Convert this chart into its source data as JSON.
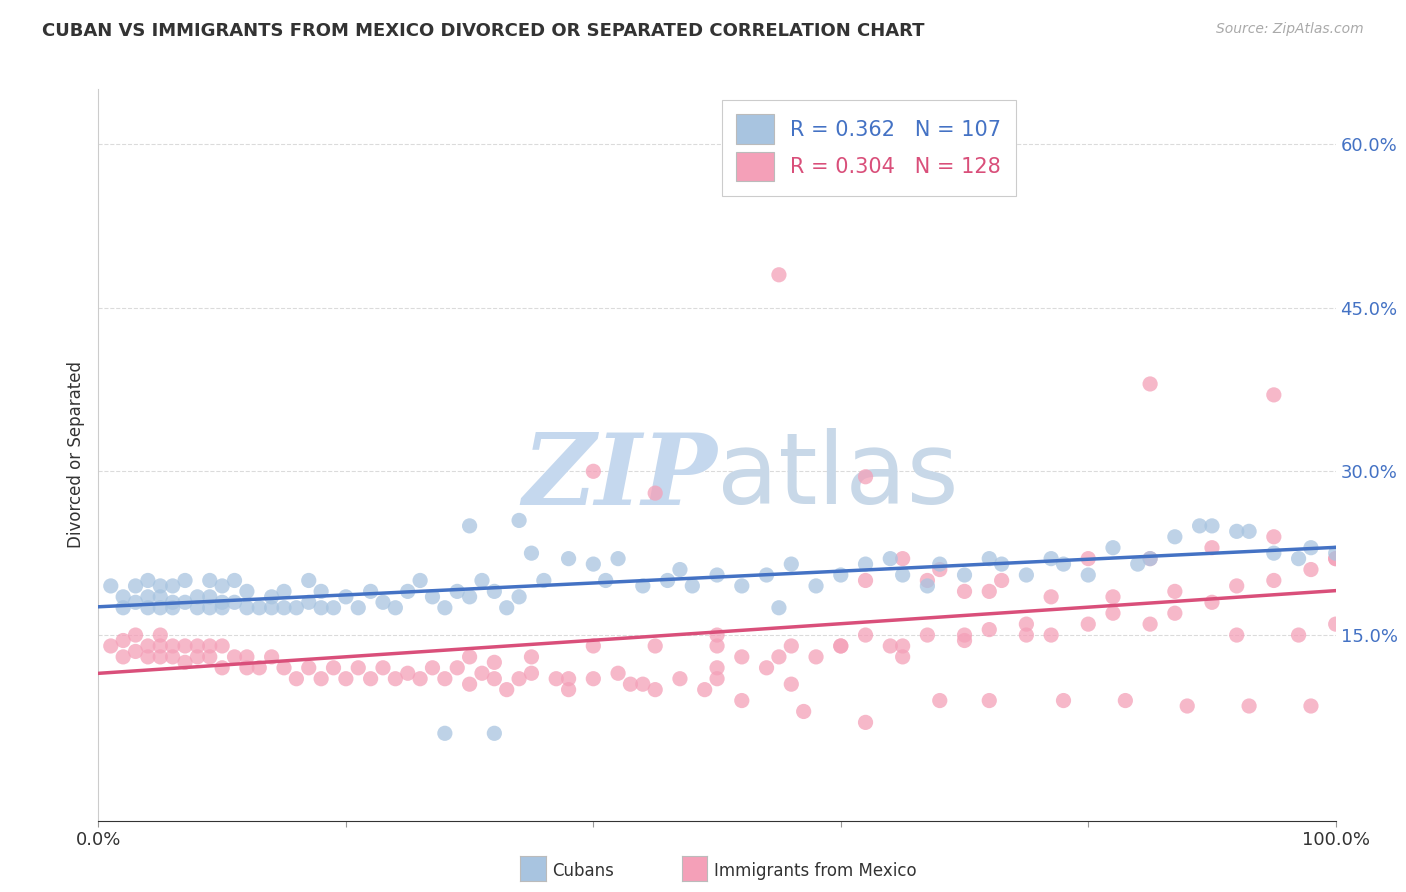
{
  "title": "CUBAN VS IMMIGRANTS FROM MEXICO DIVORCED OR SEPARATED CORRELATION CHART",
  "source": "Source: ZipAtlas.com",
  "ylabel": "Divorced or Separated",
  "xlim": [
    0.0,
    1.0
  ],
  "ylim": [
    -0.02,
    0.65
  ],
  "ytick_vals": [
    0.15,
    0.3,
    0.45,
    0.6
  ],
  "ytick_labels": [
    "15.0%",
    "30.0%",
    "45.0%",
    "60.0%"
  ],
  "legend_labels": [
    "Cubans",
    "Immigrants from Mexico"
  ],
  "cubans_R": "0.362",
  "cubans_N": "107",
  "mexico_R": "0.304",
  "mexico_N": "128",
  "cubans_color": "#a8c4e0",
  "mexico_color": "#f4a0b8",
  "cubans_line_color": "#4472c4",
  "mexico_line_color": "#d94f7a",
  "watermark_zip": "ZIP",
  "watermark_atlas": "atlas",
  "watermark_color": "#dde8f5",
  "background_color": "#ffffff",
  "grid_color": "#cccccc",
  "cubans_x": [
    0.01,
    0.02,
    0.02,
    0.03,
    0.03,
    0.04,
    0.04,
    0.04,
    0.05,
    0.05,
    0.05,
    0.06,
    0.06,
    0.06,
    0.07,
    0.07,
    0.08,
    0.08,
    0.09,
    0.09,
    0.09,
    0.1,
    0.1,
    0.1,
    0.11,
    0.11,
    0.12,
    0.12,
    0.13,
    0.14,
    0.14,
    0.15,
    0.15,
    0.16,
    0.17,
    0.17,
    0.18,
    0.18,
    0.19,
    0.2,
    0.21,
    0.22,
    0.23,
    0.24,
    0.25,
    0.26,
    0.27,
    0.28,
    0.29,
    0.3,
    0.31,
    0.32,
    0.33,
    0.34,
    0.35,
    0.36,
    0.38,
    0.4,
    0.41,
    0.42,
    0.44,
    0.46,
    0.47,
    0.48,
    0.5,
    0.52,
    0.54,
    0.55,
    0.56,
    0.58,
    0.6,
    0.62,
    0.64,
    0.65,
    0.67,
    0.68,
    0.7,
    0.72,
    0.73,
    0.75,
    0.77,
    0.78,
    0.8,
    0.82,
    0.84,
    0.85,
    0.87,
    0.89,
    0.9,
    0.92,
    0.93,
    0.95,
    0.97,
    0.98,
    1.0,
    0.28,
    0.32,
    0.3,
    0.34
  ],
  "cubans_y": [
    0.195,
    0.175,
    0.185,
    0.18,
    0.195,
    0.175,
    0.185,
    0.2,
    0.175,
    0.185,
    0.195,
    0.175,
    0.18,
    0.195,
    0.18,
    0.2,
    0.175,
    0.185,
    0.175,
    0.185,
    0.2,
    0.175,
    0.18,
    0.195,
    0.18,
    0.2,
    0.175,
    0.19,
    0.175,
    0.175,
    0.185,
    0.175,
    0.19,
    0.175,
    0.18,
    0.2,
    0.175,
    0.19,
    0.175,
    0.185,
    0.175,
    0.19,
    0.18,
    0.175,
    0.19,
    0.2,
    0.185,
    0.175,
    0.19,
    0.185,
    0.2,
    0.19,
    0.175,
    0.185,
    0.225,
    0.2,
    0.22,
    0.215,
    0.2,
    0.22,
    0.195,
    0.2,
    0.21,
    0.195,
    0.205,
    0.195,
    0.205,
    0.175,
    0.215,
    0.195,
    0.205,
    0.215,
    0.22,
    0.205,
    0.195,
    0.215,
    0.205,
    0.22,
    0.215,
    0.205,
    0.22,
    0.215,
    0.205,
    0.23,
    0.215,
    0.22,
    0.24,
    0.25,
    0.25,
    0.245,
    0.245,
    0.225,
    0.22,
    0.23,
    0.225,
    0.06,
    0.06,
    0.25,
    0.255
  ],
  "mexico_x": [
    0.01,
    0.02,
    0.02,
    0.03,
    0.03,
    0.04,
    0.04,
    0.05,
    0.05,
    0.05,
    0.06,
    0.06,
    0.07,
    0.07,
    0.08,
    0.08,
    0.09,
    0.09,
    0.1,
    0.1,
    0.11,
    0.12,
    0.12,
    0.13,
    0.14,
    0.15,
    0.16,
    0.17,
    0.18,
    0.19,
    0.2,
    0.21,
    0.22,
    0.23,
    0.24,
    0.25,
    0.26,
    0.27,
    0.28,
    0.29,
    0.3,
    0.31,
    0.32,
    0.33,
    0.34,
    0.35,
    0.37,
    0.38,
    0.4,
    0.42,
    0.43,
    0.45,
    0.47,
    0.49,
    0.5,
    0.52,
    0.54,
    0.56,
    0.58,
    0.6,
    0.62,
    0.64,
    0.65,
    0.67,
    0.7,
    0.72,
    0.75,
    0.77,
    0.8,
    0.82,
    0.85,
    0.87,
    0.9,
    0.92,
    0.95,
    0.98,
    1.0,
    0.4,
    0.45,
    0.5,
    0.62,
    0.65,
    0.68,
    0.7,
    0.73,
    0.85,
    0.95,
    0.6,
    0.55,
    0.52,
    0.57,
    0.62,
    0.68,
    0.72,
    0.78,
    0.83,
    0.88,
    0.93,
    0.98,
    0.62,
    0.67,
    0.72,
    0.77,
    0.82,
    0.87,
    0.92,
    0.97,
    1.0,
    0.3,
    0.35,
    0.4,
    0.45,
    0.5,
    0.55,
    0.6,
    0.65,
    0.7,
    0.75,
    0.8,
    0.85,
    0.9,
    0.95,
    1.0,
    0.32,
    0.38,
    0.44,
    0.5,
    0.56
  ],
  "mexico_y": [
    0.14,
    0.13,
    0.145,
    0.135,
    0.15,
    0.13,
    0.14,
    0.13,
    0.14,
    0.15,
    0.13,
    0.14,
    0.125,
    0.14,
    0.13,
    0.14,
    0.13,
    0.14,
    0.12,
    0.14,
    0.13,
    0.12,
    0.13,
    0.12,
    0.13,
    0.12,
    0.11,
    0.12,
    0.11,
    0.12,
    0.11,
    0.12,
    0.11,
    0.12,
    0.11,
    0.115,
    0.11,
    0.12,
    0.11,
    0.12,
    0.105,
    0.115,
    0.11,
    0.1,
    0.11,
    0.115,
    0.11,
    0.1,
    0.11,
    0.115,
    0.105,
    0.1,
    0.11,
    0.1,
    0.12,
    0.13,
    0.12,
    0.14,
    0.13,
    0.14,
    0.15,
    0.14,
    0.13,
    0.15,
    0.145,
    0.155,
    0.16,
    0.15,
    0.16,
    0.17,
    0.16,
    0.17,
    0.18,
    0.195,
    0.2,
    0.21,
    0.22,
    0.3,
    0.28,
    0.15,
    0.295,
    0.22,
    0.21,
    0.19,
    0.2,
    0.38,
    0.37,
    0.57,
    0.48,
    0.09,
    0.08,
    0.07,
    0.09,
    0.09,
    0.09,
    0.09,
    0.085,
    0.085,
    0.085,
    0.2,
    0.2,
    0.19,
    0.185,
    0.185,
    0.19,
    0.15,
    0.15,
    0.16,
    0.13,
    0.13,
    0.14,
    0.14,
    0.14,
    0.13,
    0.14,
    0.14,
    0.15,
    0.15,
    0.22,
    0.22,
    0.23,
    0.24,
    0.22,
    0.125,
    0.11,
    0.105,
    0.11,
    0.105
  ]
}
